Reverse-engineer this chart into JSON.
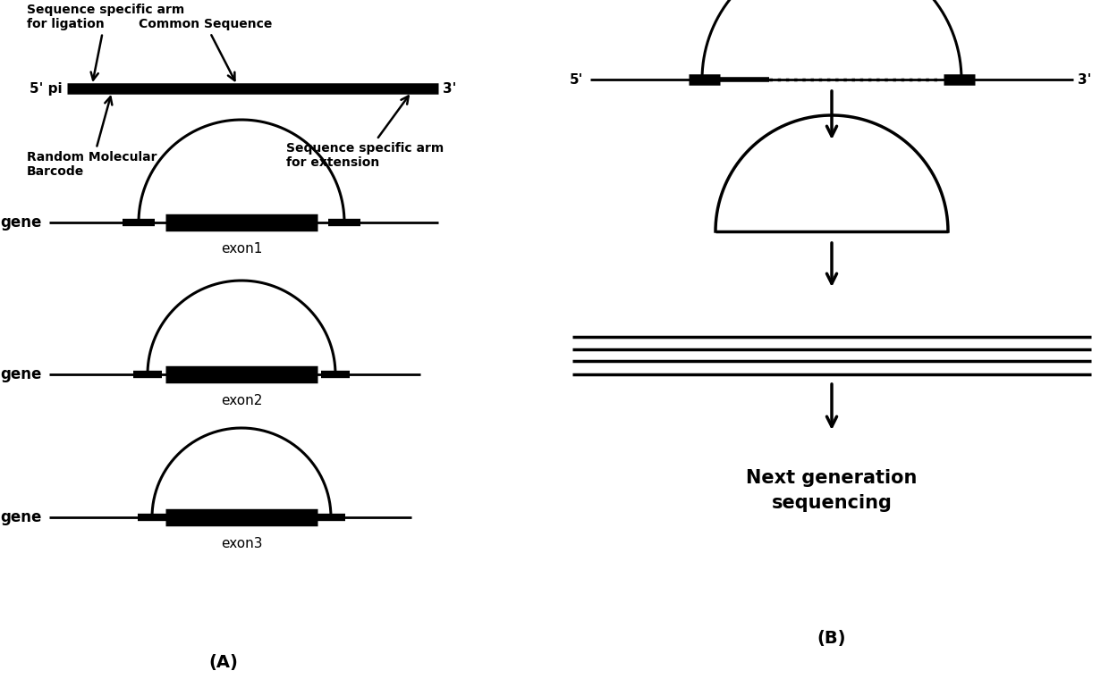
{
  "bg_color": "#ffffff",
  "panel_A_label": "(A)",
  "panel_B_label": "(B)",
  "probe_label_5p": "5' pi",
  "probe_label_3p": "3'",
  "label_seq_specific_ligation": "Sequence specific arm\nfor ligation",
  "label_common_seq": "Common Sequence",
  "label_random_barcode": "Random Molecular\nBarcode",
  "label_seq_specific_ext": "Sequence specific arm\nfor extension",
  "exon_labels": [
    "exon1",
    "exon2",
    "exon3"
  ],
  "gene_label": "gene",
  "ngs_label": "Next generation\nsequencing",
  "line_color": "black",
  "text_color": "black"
}
